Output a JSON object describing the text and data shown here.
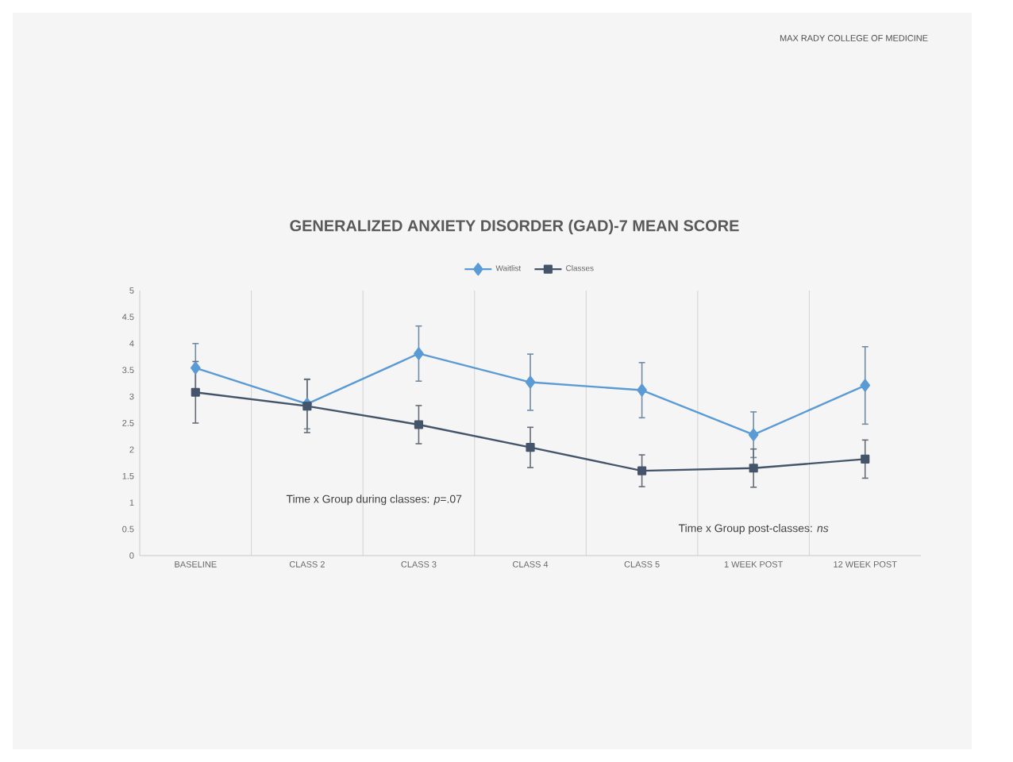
{
  "chart_data": {
    "type": "line",
    "title": "GENERALIZED ANXIETY DISORDER (GAD)-7 MEAN SCORE",
    "categories": [
      "BASELINE",
      "CLASS 2",
      "CLASS 3",
      "CLASS 4",
      "CLASS 5",
      "1 WEEK POST",
      "12 WEEK POST"
    ],
    "series": [
      {
        "name": "Waitlist",
        "color": "#5b9bd5",
        "marker": "diamond",
        "values": [
          3.54,
          2.86,
          3.81,
          3.27,
          3.12,
          2.28,
          3.21
        ],
        "errors": [
          0.46,
          0.47,
          0.52,
          0.53,
          0.52,
          0.43,
          0.73
        ]
      },
      {
        "name": "Classes",
        "color": "#44546a",
        "marker": "square",
        "values": [
          3.08,
          2.82,
          2.47,
          2.04,
          1.6,
          1.65,
          1.82
        ],
        "errors": [
          0.58,
          0.5,
          0.36,
          0.38,
          0.3,
          0.36,
          0.36
        ]
      }
    ],
    "ylim": [
      0,
      5
    ],
    "yticks": [
      0,
      0.5,
      1,
      1.5,
      2,
      2.5,
      3,
      3.5,
      4,
      4.5,
      5
    ],
    "grid": "x",
    "legend": "top",
    "annotations": [
      "Time x Group during classes: *p*=.07",
      "Time x Group post-classes: *ns*",
      "MAX RADY COLLEGE OF MEDICINE"
    ]
  }
}
